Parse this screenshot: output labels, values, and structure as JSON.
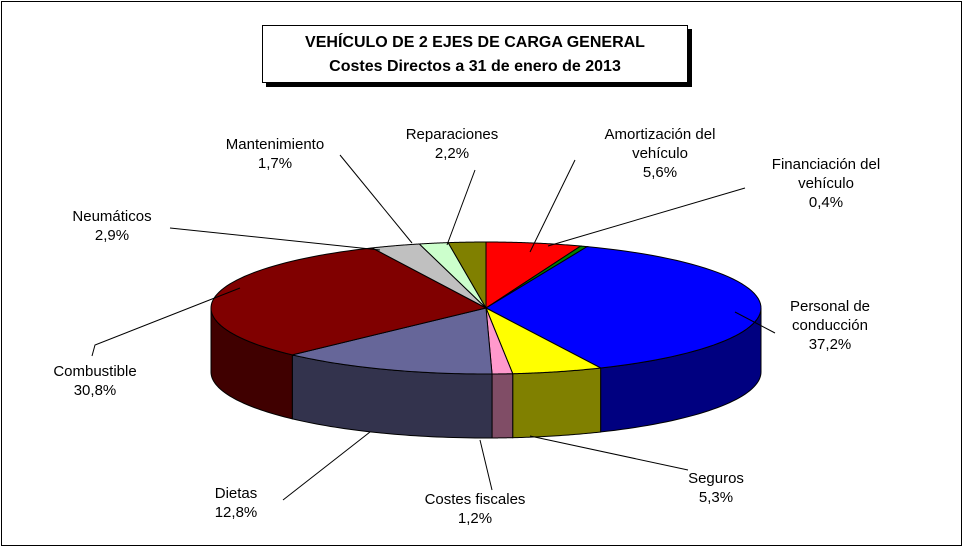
{
  "chart_data": {
    "type": "pie",
    "title": "VEHÍCULO DE 2 EJES DE CARGA GENERAL",
    "subtitle": "Costes Directos a 31 de enero de 2013",
    "categories": [
      "Amortización del vehículo",
      "Financiación del vehículo",
      "Personal de conducción",
      "Seguros",
      "Costes fiscales",
      "Dietas",
      "Combustible",
      "Neumáticos",
      "Mantenimiento",
      "Reparaciones"
    ],
    "values": [
      5.6,
      0.4,
      37.2,
      5.3,
      1.2,
      12.8,
      30.8,
      2.9,
      1.7,
      2.2
    ],
    "value_labels": [
      "5,6%",
      "0,4%",
      "37,2%",
      "5,3%",
      "1,2%",
      "12,8%",
      "30,8%",
      "2,9%",
      "1,7%",
      "2,2%"
    ],
    "colors": [
      "#ff0000",
      "#008000",
      "#0000ff",
      "#ffff00",
      "#ff99cc",
      "#666699",
      "#800000",
      "#c0c0c0",
      "#ccffcc",
      "#808000"
    ]
  }
}
